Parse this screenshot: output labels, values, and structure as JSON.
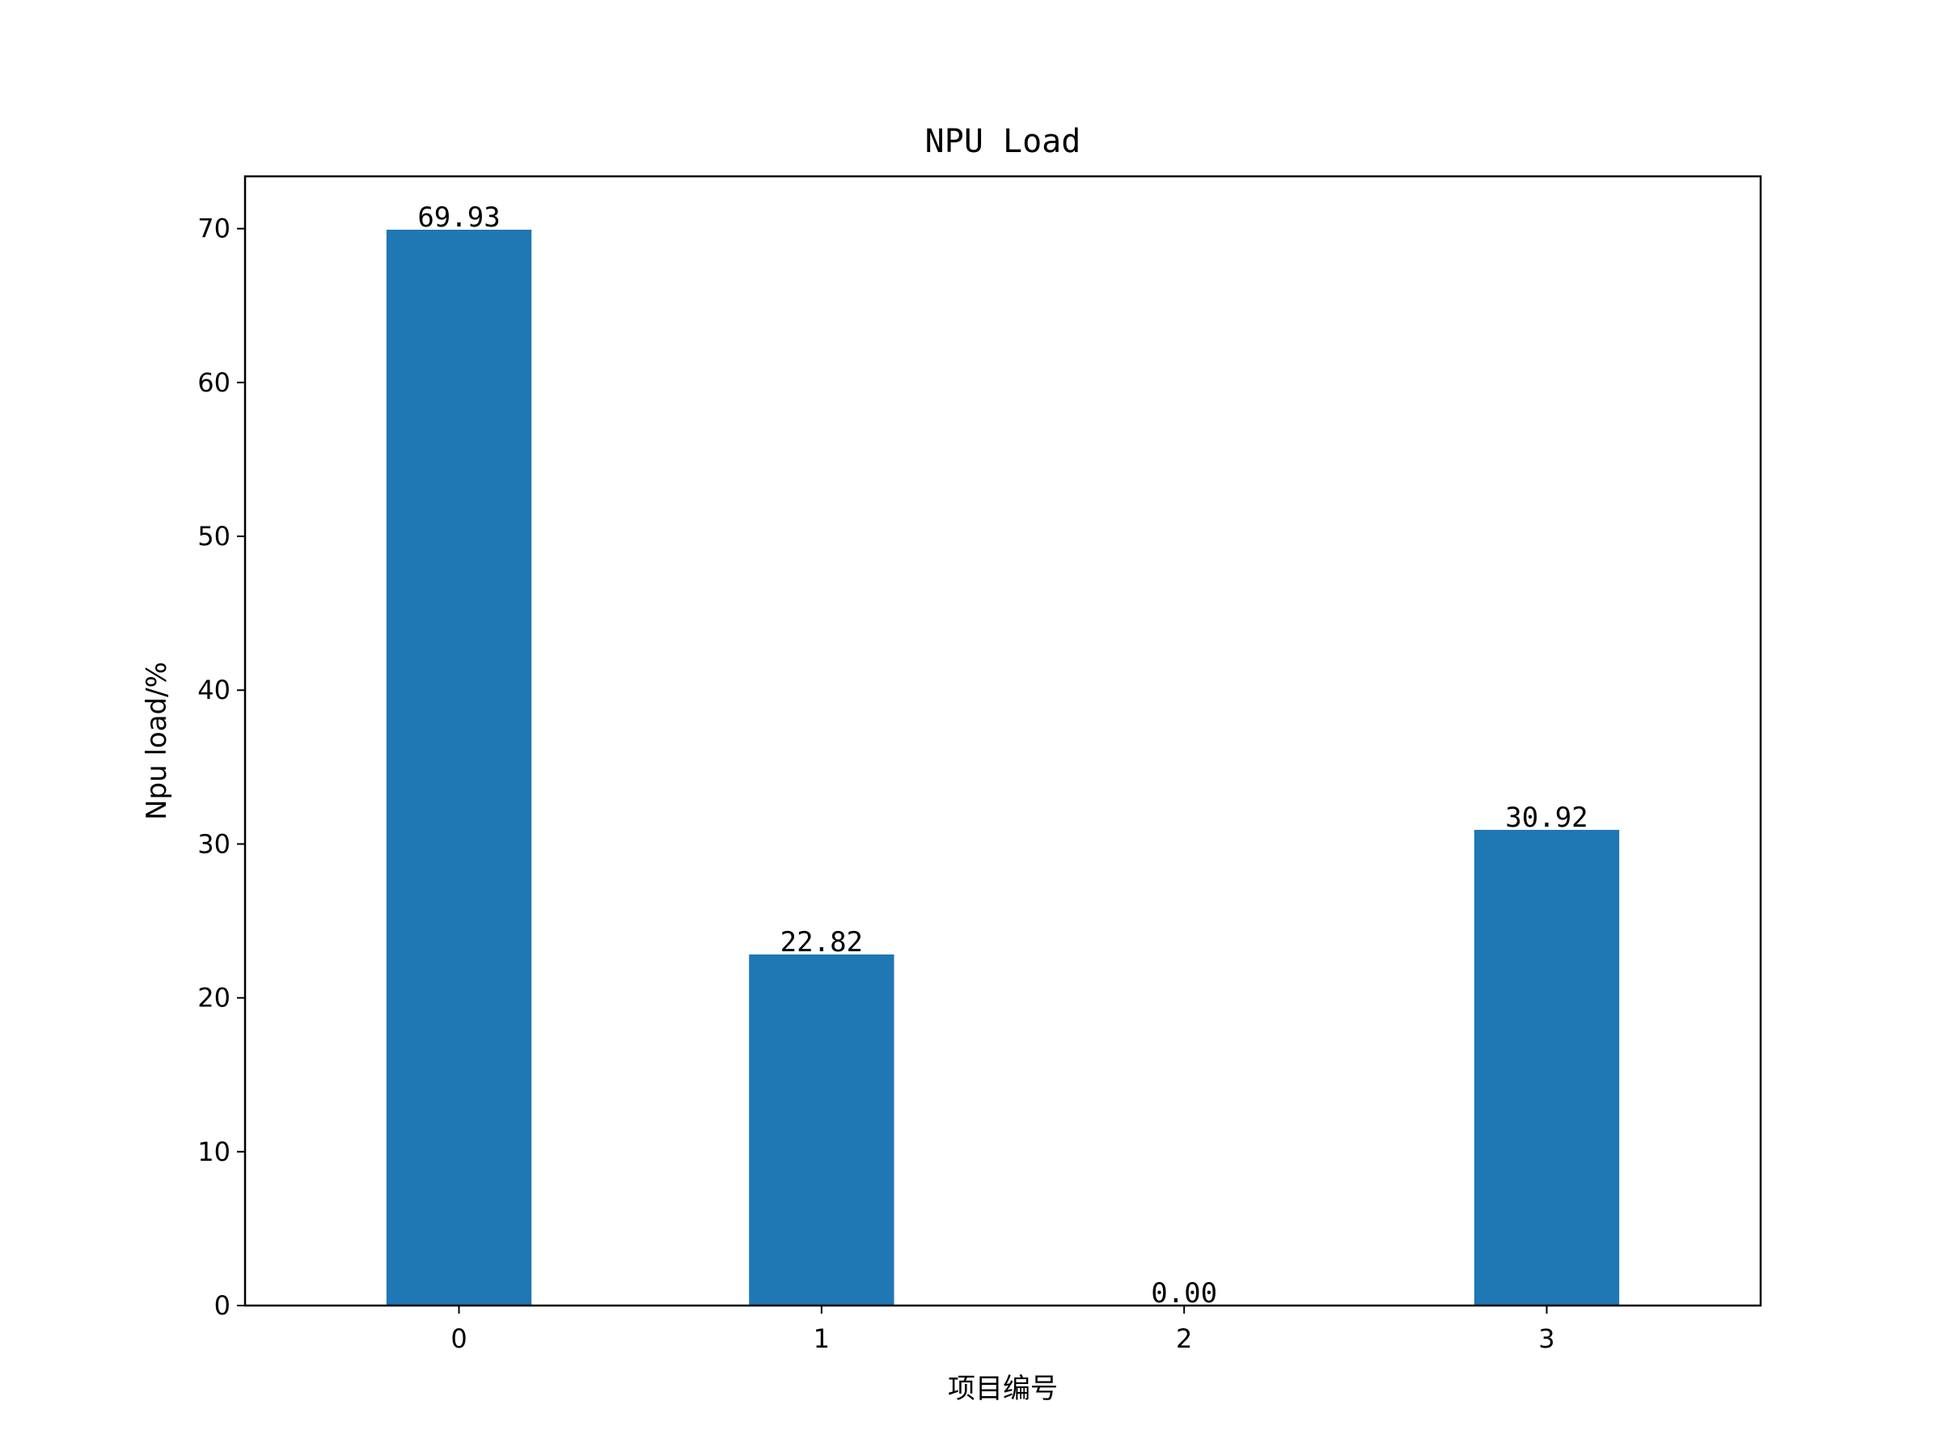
{
  "chart_data": {
    "type": "bar",
    "title": "NPU Load",
    "xlabel": "项目编号",
    "ylabel": "Npu load/%",
    "categories": [
      "0",
      "1",
      "2",
      "3"
    ],
    "values": [
      69.93,
      22.82,
      0.0,
      30.92
    ],
    "value_labels": [
      "69.93",
      "22.82",
      "0.00",
      "30.92"
    ],
    "ylim": [
      0,
      73.4
    ],
    "yticks": [
      0,
      10,
      20,
      30,
      40,
      50,
      60,
      70
    ],
    "grid": false,
    "bar_color": "#1f77b4"
  }
}
